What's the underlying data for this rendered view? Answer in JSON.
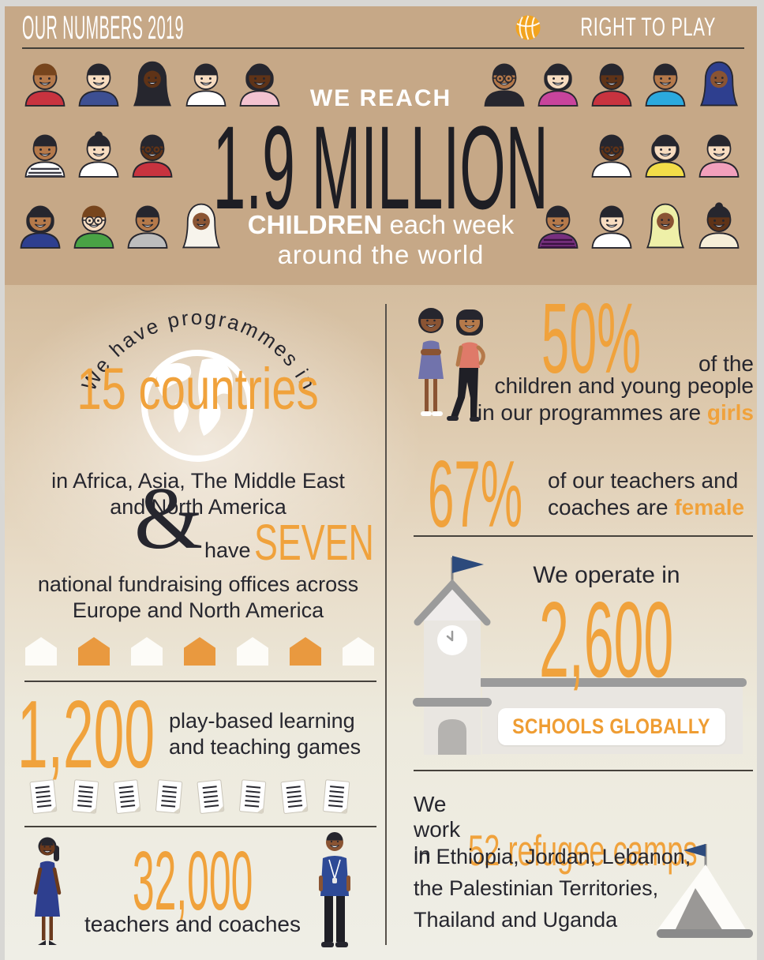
{
  "header": {
    "title": "OUR NUMBERS 2019",
    "brand": "RIGHT TO PLAY"
  },
  "hero": {
    "we_reach": "WE REACH",
    "big_number": "1.9 MILLION",
    "children_bold": "CHILDREN",
    "children_rest": " each week",
    "around": "around the world",
    "faces_left": [
      [
        {
          "s": "#b5794a",
          "h": "short",
          "hc": "#77451d",
          "c": "#c8333f"
        },
        {
          "s": "#f7dcc0",
          "h": "short",
          "hc": "#26262e",
          "c": "#3d4f92"
        },
        {
          "s": "#5f3317",
          "h": "hijab",
          "hc": "#26262e"
        },
        {
          "s": "#f7dcc0",
          "h": "short",
          "hc": "#26262e",
          "c": "#ffffff"
        },
        {
          "s": "#5f3317",
          "h": "bob",
          "hc": "#26262e",
          "c": "#f3c3d0"
        }
      ],
      [
        {
          "s": "#b5794a",
          "h": "short",
          "hc": "#26262e",
          "c": "#ffffff",
          "st": "#3a3a44"
        },
        {
          "s": "#f7dcc0",
          "h": "bun",
          "hc": "#26262e",
          "c": "#ffffff"
        },
        {
          "s": "#5f3317",
          "h": "short",
          "hc": "#26262e",
          "c": "#c8333f",
          "g": 1
        }
      ],
      [
        {
          "s": "#b5794a",
          "h": "bob",
          "hc": "#26262e",
          "c": "#2e3f8f"
        },
        {
          "s": "#f7dcc0",
          "h": "short",
          "hc": "#77451d",
          "c": "#49a345",
          "g": 1
        },
        {
          "s": "#b5794a",
          "h": "short",
          "hc": "#26262e",
          "c": "#bdbdbd"
        },
        {
          "s": "#8a5433",
          "h": "hijab",
          "hc": "#f7f4ec"
        }
      ]
    ],
    "faces_right": [
      [
        {
          "s": "#b5794a",
          "h": "short",
          "hc": "#26262e",
          "c": "#26262e",
          "g": 1
        },
        {
          "s": "#f7dcc0",
          "h": "bob",
          "hc": "#26262e",
          "c": "#c8449c"
        },
        {
          "s": "#5f3317",
          "h": "short",
          "hc": "#26262e",
          "c": "#c8333f"
        },
        {
          "s": "#b5794a",
          "h": "short",
          "hc": "#26262e",
          "c": "#2ba9de"
        },
        {
          "s": "#8a5433",
          "h": "hijab",
          "hc": "#2e3f8f"
        }
      ],
      [
        {
          "s": "#5f3317",
          "h": "short",
          "hc": "#26262e",
          "c": "#ffffff",
          "g": 1
        },
        {
          "s": "#f7dcc0",
          "h": "bob",
          "hc": "#26262e",
          "c": "#f2dd49"
        },
        {
          "s": "#f7dcc0",
          "h": "short",
          "hc": "#26262e",
          "c": "#f2a0bc"
        }
      ],
      [
        {
          "s": "#b5794a",
          "h": "short",
          "hc": "#26262e",
          "c": "#77307f",
          "st": "#3a1440"
        },
        {
          "s": "#f7dcc0",
          "h": "short",
          "hc": "#26262e",
          "c": "#ffffff"
        },
        {
          "s": "#8a5433",
          "h": "hijab",
          "hc": "#eef0a8"
        },
        {
          "s": "#5f3317",
          "h": "bun",
          "hc": "#26262e",
          "c": "#f6eed8"
        }
      ]
    ]
  },
  "left": {
    "programmes_arc": "We have programmes in",
    "countries": "15 countries",
    "regions_line1": "in Africa, Asia, The Middle East",
    "regions_line2": "and North America",
    "ampersand": "&",
    "have": "have",
    "seven": "SEVEN",
    "offices_line1": "national fundraising offices across",
    "offices_line2": "Europe and North America",
    "houses": [
      "white",
      "orange",
      "white",
      "orange",
      "white",
      "orange",
      "white"
    ],
    "games_number": "1,200",
    "games_line1": "play-based learning",
    "games_line2": "and teaching games",
    "papers_count": 8,
    "teachers_number": "32,000",
    "teachers_label": "teachers and coaches"
  },
  "right": {
    "girls_pct": "50%",
    "girls_of_the": "of the",
    "girls_line2": "children and young people",
    "girls_line3_pre": "in our programmes are ",
    "girls_line3_bold": "girls",
    "female_pct": "67%",
    "female_line1": "of our teachers and",
    "female_line2_pre": "coaches are ",
    "female_line2_bold": "female",
    "schools_intro": "We operate in",
    "schools_number": "2,600",
    "schools_badge": "SCHOOLS GLOBALLY",
    "camps_pre": "We work in",
    "camps_highlight": "52 refugee camps",
    "camps_line1": "in Ethiopia, Jordan, Lebanon,",
    "camps_line2": "the Palestinian Territories,",
    "camps_line3": "Thailand and Uganda"
  },
  "colors": {
    "accent_orange": "#f0a23c",
    "hero_background": "#c6a887",
    "dark_text": "#26262e",
    "flag_navy": "#2c4a7c",
    "house_orange": "#e9993f",
    "logo_ball": "#f2a41f"
  }
}
